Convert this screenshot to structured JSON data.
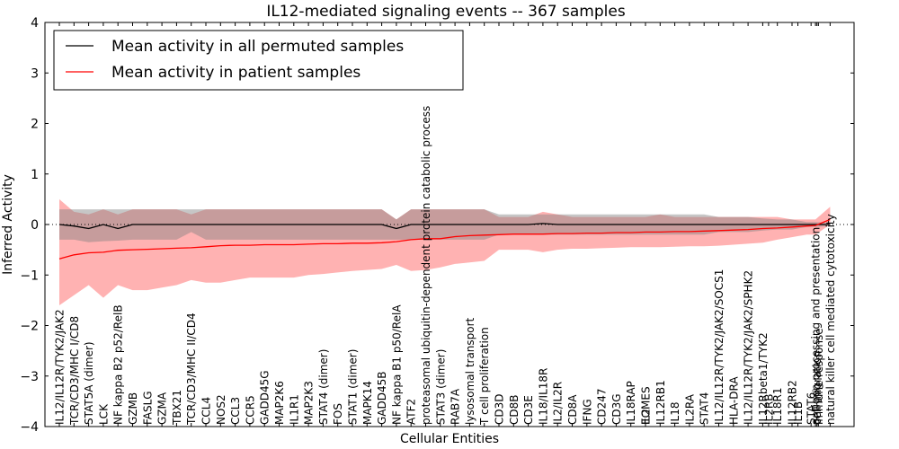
{
  "chart_data": {
    "type": "line",
    "title": "IL12-mediated signaling events -- 367 samples",
    "xlabel": "Cellular Entities",
    "ylabel": "Inferred Activity",
    "ylim": [
      -4,
      4
    ],
    "yticks": [
      "4",
      "3",
      "2",
      "1",
      "0",
      "−1",
      "−2",
      "−3",
      "−4"
    ],
    "ytick_values": [
      4,
      3,
      2,
      1,
      0,
      -1,
      -2,
      -3,
      -4
    ],
    "xlim": [
      -0.5,
      54.5
    ],
    "grid": false,
    "legend": {
      "placement": "top-left",
      "entries": [
        {
          "label": "Mean activity in all permuted samples",
          "color": "#000000"
        },
        {
          "label": "Mean activity in patient samples",
          "color": "#ff0000"
        }
      ]
    },
    "categories": [
      {
        "label": "IL12/IL12R/TYK2/JAK2",
        "x": 0
      },
      {
        "label": "TCR/CD3/MHC I/CD8",
        "x": 1
      },
      {
        "label": "STAT5A (dimer)",
        "x": 2
      },
      {
        "label": "LCK",
        "x": 3
      },
      {
        "label": "NF kappa B2 p52/RelB",
        "x": 4
      },
      {
        "label": "GZMB",
        "x": 5
      },
      {
        "label": "FASLG",
        "x": 6
      },
      {
        "label": "GZMA",
        "x": 7
      },
      {
        "label": "TBX21",
        "x": 8
      },
      {
        "label": "TCR/CD3/MHC II/CD4",
        "x": 9
      },
      {
        "label": "CCL4",
        "x": 10
      },
      {
        "label": "NOS2",
        "x": 11
      },
      {
        "label": "CCL3",
        "x": 12
      },
      {
        "label": "CCR5",
        "x": 13
      },
      {
        "label": "GADD45G",
        "x": 14
      },
      {
        "label": "MAP2K6",
        "x": 15
      },
      {
        "label": "IL1R1",
        "x": 16
      },
      {
        "label": "MAP2K3",
        "x": 17
      },
      {
        "label": "STAT4 (dimer)",
        "x": 18
      },
      {
        "label": "FOS",
        "x": 19
      },
      {
        "label": "STAT1 (dimer)",
        "x": 20
      },
      {
        "label": "MAPK14",
        "x": 21
      },
      {
        "label": "GADD45B",
        "x": 22
      },
      {
        "label": "NF kappa B1 p50/RelA",
        "x": 23
      },
      {
        "label": "ATF2",
        "x": 24
      },
      {
        "label": "proteasomal ubiquitin-dependent protein catabolic process",
        "x": 25
      },
      {
        "label": "STAT3 (dimer)",
        "x": 26
      },
      {
        "label": "RAB7A",
        "x": 27
      },
      {
        "label": "lysosomal transport",
        "x": 28
      },
      {
        "label": "T cell proliferation",
        "x": 29
      },
      {
        "label": "CD3D",
        "x": 30
      },
      {
        "label": "CD8B",
        "x": 31
      },
      {
        "label": "CD3E",
        "x": 32
      },
      {
        "label": "IL18/IL18R",
        "x": 33
      },
      {
        "label": "IL2/IL2R",
        "x": 34
      },
      {
        "label": "CD8A",
        "x": 35
      },
      {
        "label": "IFNG",
        "x": 36
      },
      {
        "label": "CD247",
        "x": 37
      },
      {
        "label": "CD3G",
        "x": 38
      },
      {
        "label": "IL18RAP",
        "x": 39
      },
      {
        "label": "EOMES",
        "x": 40
      },
      {
        "label": "IL2",
        "x": 40
      },
      {
        "label": "IL12RB1",
        "x": 41
      },
      {
        "label": "IL18",
        "x": 42
      },
      {
        "label": "IL2RA",
        "x": 43
      },
      {
        "label": "STAT4",
        "x": 44
      },
      {
        "label": "IL12/IL12R/TYK2/JAK2/SOCS1",
        "x": 45
      },
      {
        "label": "HLA-DRA",
        "x": 46
      },
      {
        "label": "IL12/IL12R/TYK2/JAK2/SPHK2",
        "x": 47
      },
      {
        "label": "IL12Rbeta1/TYK2",
        "x": 48
      },
      {
        "label": "IL2RB",
        "x": 48.4
      },
      {
        "label": "IL18R1",
        "x": 49
      },
      {
        "label": "IL12RB2",
        "x": 50
      },
      {
        "label": "IL1B",
        "x": 50.4
      },
      {
        "label": "STAT6",
        "x": 51.3
      },
      {
        "label": "antigen processing and presentation",
        "x": 51.6
      },
      {
        "label": "cell migration",
        "x": 51.7
      },
      {
        "label": "immune response",
        "x": 51.8
      },
      {
        "label": "natural killer cell mediated cytotoxicity",
        "x": 52.6
      }
    ],
    "series": [
      {
        "name": "Mean activity in all permuted samples",
        "color": "#000000",
        "x": [
          0,
          1,
          2,
          3,
          4,
          5,
          6,
          7,
          8,
          9,
          10,
          11,
          12,
          13,
          14,
          15,
          16,
          17,
          18,
          19,
          20,
          21,
          22,
          23,
          24,
          25,
          26,
          27,
          28,
          29,
          30,
          31,
          32,
          33,
          34,
          35,
          36,
          37,
          38,
          39,
          40,
          41,
          42,
          43,
          44,
          45,
          46,
          47,
          48,
          49,
          50,
          51,
          51.6,
          52.6
        ],
        "values": [
          0.0,
          -0.03,
          -0.08,
          0.0,
          -0.08,
          0.0,
          0.0,
          0.0,
          0.0,
          0.0,
          0.0,
          0.0,
          0.0,
          0.0,
          0.0,
          0.0,
          0.0,
          0.0,
          0.0,
          0.0,
          0.0,
          0.0,
          0.0,
          -0.08,
          0.0,
          0.0,
          0.0,
          0.0,
          0.0,
          0.0,
          0.0,
          0.0,
          0.0,
          0.02,
          0.0,
          0.0,
          0.0,
          0.0,
          0.0,
          0.0,
          0.0,
          0.0,
          0.0,
          0.0,
          0.0,
          0.0,
          0.0,
          0.0,
          0.0,
          0.0,
          0.0,
          0.0,
          0.0,
          0.0
        ],
        "band_low": [
          -0.3,
          -0.3,
          -0.35,
          -0.33,
          -0.32,
          -0.3,
          -0.3,
          -0.3,
          -0.3,
          -0.15,
          -0.3,
          -0.3,
          -0.3,
          -0.3,
          -0.3,
          -0.3,
          -0.3,
          -0.3,
          -0.3,
          -0.3,
          -0.3,
          -0.3,
          -0.3,
          -0.3,
          -0.3,
          -0.3,
          -0.3,
          -0.3,
          -0.3,
          -0.3,
          -0.2,
          -0.2,
          -0.2,
          -0.2,
          -0.2,
          -0.2,
          -0.2,
          -0.2,
          -0.2,
          -0.2,
          -0.2,
          -0.2,
          -0.2,
          -0.2,
          -0.2,
          -0.15,
          -0.15,
          -0.15,
          -0.12,
          -0.1,
          -0.1,
          -0.05,
          -0.05,
          -0.03
        ],
        "band_high": [
          0.3,
          0.3,
          0.3,
          0.3,
          0.3,
          0.3,
          0.3,
          0.3,
          0.3,
          0.3,
          0.3,
          0.3,
          0.3,
          0.3,
          0.3,
          0.3,
          0.3,
          0.3,
          0.3,
          0.3,
          0.3,
          0.3,
          0.3,
          0.1,
          0.3,
          0.3,
          0.3,
          0.3,
          0.3,
          0.3,
          0.2,
          0.2,
          0.2,
          0.2,
          0.2,
          0.2,
          0.2,
          0.2,
          0.2,
          0.2,
          0.2,
          0.2,
          0.2,
          0.2,
          0.2,
          0.15,
          0.15,
          0.15,
          0.12,
          0.1,
          0.1,
          0.05,
          0.05,
          0.03
        ]
      },
      {
        "name": "Mean activity in patient samples",
        "color": "#ff0000",
        "x": [
          0,
          1,
          2,
          3,
          4,
          5,
          6,
          7,
          8,
          9,
          10,
          11,
          12,
          13,
          14,
          15,
          16,
          17,
          18,
          19,
          20,
          21,
          22,
          23,
          24,
          25,
          26,
          27,
          28,
          29,
          30,
          31,
          32,
          33,
          34,
          35,
          36,
          37,
          38,
          39,
          40,
          41,
          42,
          43,
          44,
          45,
          46,
          47,
          48,
          49,
          50,
          51,
          51.6,
          52.6
        ],
        "values": [
          -0.68,
          -0.6,
          -0.56,
          -0.55,
          -0.51,
          -0.5,
          -0.49,
          -0.48,
          -0.47,
          -0.46,
          -0.44,
          -0.42,
          -0.41,
          -0.41,
          -0.4,
          -0.4,
          -0.4,
          -0.39,
          -0.38,
          -0.38,
          -0.37,
          -0.37,
          -0.36,
          -0.34,
          -0.3,
          -0.28,
          -0.28,
          -0.24,
          -0.22,
          -0.21,
          -0.2,
          -0.19,
          -0.19,
          -0.19,
          -0.18,
          -0.18,
          -0.17,
          -0.17,
          -0.16,
          -0.16,
          -0.15,
          -0.15,
          -0.14,
          -0.14,
          -0.13,
          -0.12,
          -0.11,
          -0.1,
          -0.08,
          -0.07,
          -0.05,
          -0.03,
          -0.02,
          0.1
        ],
        "band_low": [
          -1.6,
          -1.4,
          -1.2,
          -1.45,
          -1.2,
          -1.3,
          -1.3,
          -1.25,
          -1.2,
          -1.1,
          -1.15,
          -1.15,
          -1.1,
          -1.05,
          -1.05,
          -1.05,
          -1.05,
          -1.0,
          -0.98,
          -0.95,
          -0.92,
          -0.9,
          -0.88,
          -0.8,
          -0.92,
          -0.9,
          -0.85,
          -0.78,
          -0.75,
          -0.72,
          -0.5,
          -0.5,
          -0.5,
          -0.55,
          -0.5,
          -0.48,
          -0.48,
          -0.47,
          -0.46,
          -0.45,
          -0.45,
          -0.45,
          -0.44,
          -0.43,
          -0.43,
          -0.42,
          -0.4,
          -0.38,
          -0.36,
          -0.3,
          -0.25,
          -0.2,
          -0.2,
          0.0
        ],
        "band_high": [
          0.5,
          0.25,
          0.2,
          0.3,
          0.2,
          0.3,
          0.3,
          0.3,
          0.3,
          0.2,
          0.3,
          0.3,
          0.3,
          0.3,
          0.3,
          0.3,
          0.3,
          0.3,
          0.3,
          0.3,
          0.3,
          0.3,
          0.3,
          0.1,
          0.3,
          0.3,
          0.3,
          0.3,
          0.3,
          0.3,
          0.15,
          0.15,
          0.15,
          0.25,
          0.2,
          0.15,
          0.15,
          0.15,
          0.15,
          0.15,
          0.15,
          0.2,
          0.15,
          0.15,
          0.15,
          0.15,
          0.15,
          0.15,
          0.15,
          0.15,
          0.1,
          0.1,
          0.1,
          0.35
        ]
      }
    ]
  }
}
